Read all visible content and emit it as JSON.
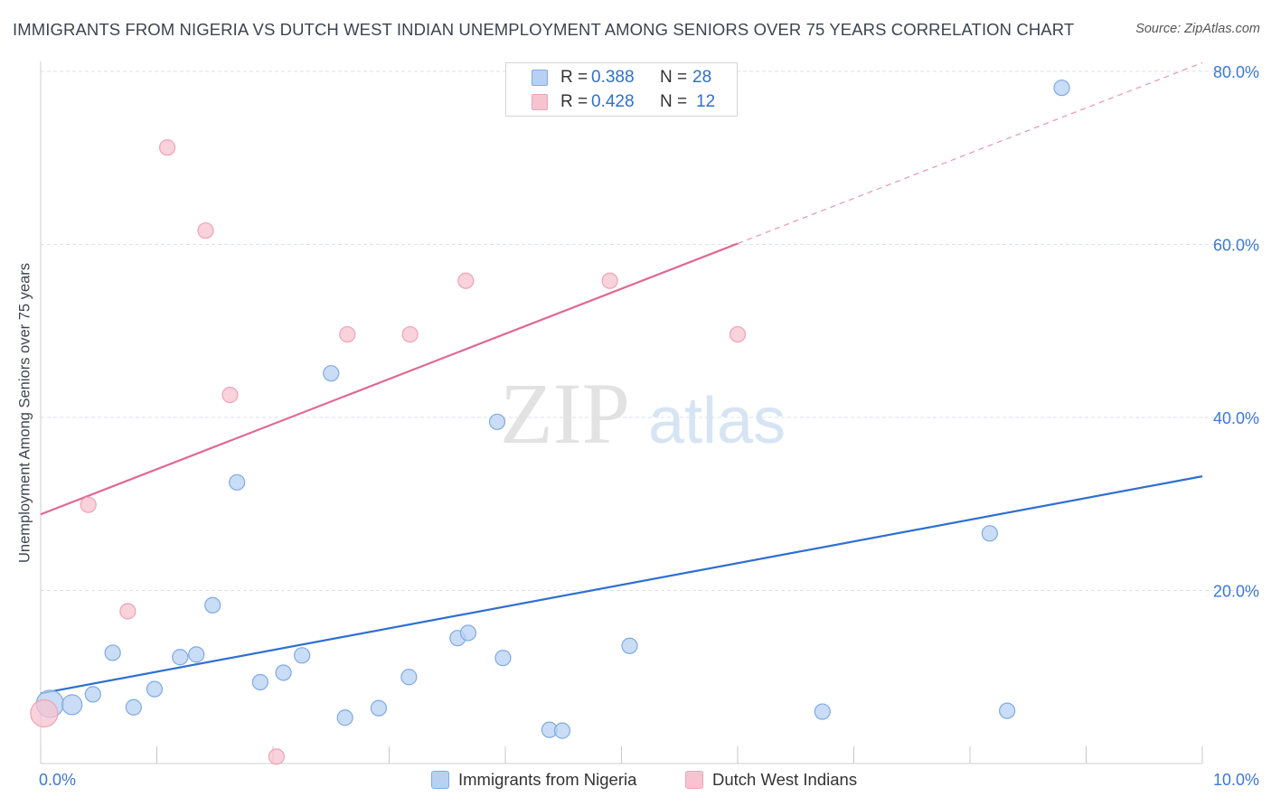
{
  "header": {
    "title": "IMMIGRANTS FROM NIGERIA VS DUTCH WEST INDIAN UNEMPLOYMENT AMONG SENIORS OVER 75 YEARS CORRELATION CHART",
    "source": "Source: ZipAtlas.com"
  },
  "watermark": {
    "zip": "ZIP",
    "atlas": "atlas"
  },
  "legend": {
    "rows": [
      {
        "r_label": "R =",
        "r_value": "0.388",
        "n_label": "N =",
        "n_value": "28"
      },
      {
        "r_label": "R =",
        "r_value": "0.428",
        "n_label": "N =",
        "n_value": "12"
      }
    ]
  },
  "bottom_legend": {
    "series1": "Immigrants from Nigeria",
    "series2": "Dutch West Indians"
  },
  "colors": {
    "blue_fill": "#b8d1f3",
    "blue_stroke": "#7eaae3",
    "blue_line": "#2f6fd0",
    "pink_fill": "#f7c3d0",
    "pink_stroke": "#eea3b7",
    "pink_line": "#e0688f",
    "tick_text": "#3c78d8",
    "grid": "#dde2ea"
  },
  "chart_data": {
    "type": "scatter",
    "title": "IMMIGRANTS FROM NIGERIA VS DUTCH WEST INDIAN UNEMPLOYMENT AMONG SENIORS OVER 75 YEARS CORRELATION CHART",
    "xlabel": "",
    "ylabel": "Unemployment Among Seniors over 75 years",
    "xlim": [
      0,
      10
    ],
    "ylim": [
      0,
      80
    ],
    "x_tick_labels": [
      "0.0%",
      "10.0%"
    ],
    "y_ticks": [
      20,
      40,
      60,
      80
    ],
    "y_tick_labels": [
      "20.0%",
      "40.0%",
      "60.0%",
      "80.0%"
    ],
    "grid": true,
    "series": [
      {
        "name": "Immigrants from Nigeria",
        "color": "blue",
        "points": [
          {
            "x": 0.08,
            "y": 6.9,
            "size": "large"
          },
          {
            "x": 0.27,
            "y": 6.8,
            "size": "medium"
          },
          {
            "x": 0.45,
            "y": 8.0
          },
          {
            "x": 0.62,
            "y": 12.8
          },
          {
            "x": 0.8,
            "y": 6.5
          },
          {
            "x": 0.98,
            "y": 8.6
          },
          {
            "x": 1.2,
            "y": 12.3
          },
          {
            "x": 1.34,
            "y": 12.6
          },
          {
            "x": 1.48,
            "y": 18.3
          },
          {
            "x": 1.69,
            "y": 32.5
          },
          {
            "x": 1.89,
            "y": 9.4
          },
          {
            "x": 2.09,
            "y": 10.5
          },
          {
            "x": 2.25,
            "y": 12.5
          },
          {
            "x": 2.5,
            "y": 45.1
          },
          {
            "x": 2.62,
            "y": 5.3
          },
          {
            "x": 2.91,
            "y": 6.4
          },
          {
            "x": 3.17,
            "y": 10.0
          },
          {
            "x": 3.59,
            "y": 14.5
          },
          {
            "x": 3.68,
            "y": 15.1
          },
          {
            "x": 3.93,
            "y": 39.5
          },
          {
            "x": 3.98,
            "y": 12.2
          },
          {
            "x": 4.38,
            "y": 3.9
          },
          {
            "x": 4.49,
            "y": 3.8
          },
          {
            "x": 5.07,
            "y": 13.6
          },
          {
            "x": 6.73,
            "y": 6.0
          },
          {
            "x": 8.17,
            "y": 26.6
          },
          {
            "x": 8.32,
            "y": 6.1
          },
          {
            "x": 8.79,
            "y": 78.1
          }
        ],
        "trend": {
          "x0": 0,
          "y0": 8.1,
          "x1": 10,
          "y1": 33.2
        }
      },
      {
        "name": "Dutch West Indians",
        "color": "pink",
        "points": [
          {
            "x": 0.03,
            "y": 5.8,
            "size": "large"
          },
          {
            "x": 0.41,
            "y": 29.9
          },
          {
            "x": 0.75,
            "y": 17.6
          },
          {
            "x": 1.09,
            "y": 71.2
          },
          {
            "x": 1.42,
            "y": 61.6
          },
          {
            "x": 1.63,
            "y": 42.6
          },
          {
            "x": 2.03,
            "y": 0.8
          },
          {
            "x": 2.64,
            "y": 49.6
          },
          {
            "x": 3.18,
            "y": 49.6
          },
          {
            "x": 3.66,
            "y": 55.8
          },
          {
            "x": 4.9,
            "y": 55.8
          },
          {
            "x": 6.0,
            "y": 49.6
          }
        ],
        "trend": {
          "x0": 0,
          "y0": 28.8,
          "x1": 6.0,
          "y1": 60.1,
          "x_dash_end": 10,
          "y_dash_end": 81.0
        }
      }
    ]
  }
}
